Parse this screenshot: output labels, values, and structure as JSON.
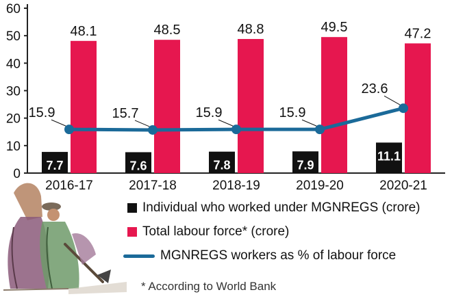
{
  "colors": {
    "black_bar": "#111111",
    "red_bar": "#e6174f",
    "line": "#1b6a99",
    "axis": "#222222",
    "grid": "#d9d9d9"
  },
  "chart_data": {
    "type": "bar+line",
    "categories": [
      "2016-17",
      "2017-18",
      "2018-19",
      "2019-20",
      "2020-21"
    ],
    "series": [
      {
        "name": "Individual who worked under MGNREGS (crore)",
        "kind": "bar",
        "color": "#111111",
        "values": [
          7.7,
          7.6,
          7.8,
          7.9,
          11.1
        ]
      },
      {
        "name": "Total labour force* (crore)",
        "kind": "bar",
        "color": "#e6174f",
        "values": [
          48.1,
          48.5,
          48.8,
          49.5,
          47.2
        ]
      },
      {
        "name": "MGNREGS workers as % of labour force",
        "kind": "line",
        "color": "#1b6a99",
        "values": [
          15.9,
          15.7,
          15.9,
          15.9,
          23.6
        ]
      }
    ],
    "yticks": [
      0,
      10,
      20,
      30,
      40,
      50,
      60
    ],
    "ylim": [
      0,
      60
    ],
    "title": "",
    "xlabel": "",
    "ylabel": "",
    "grid": false,
    "legend_position": "bottom"
  },
  "legend": {
    "bar_black": "Individual who worked under MGNREGS (crore)",
    "bar_red": "Total labour force* (crore)",
    "line": "MGNREGS workers as % of labour force"
  },
  "footnote": "* According to World Bank",
  "illustration_icon": "women-laborers-illustration"
}
